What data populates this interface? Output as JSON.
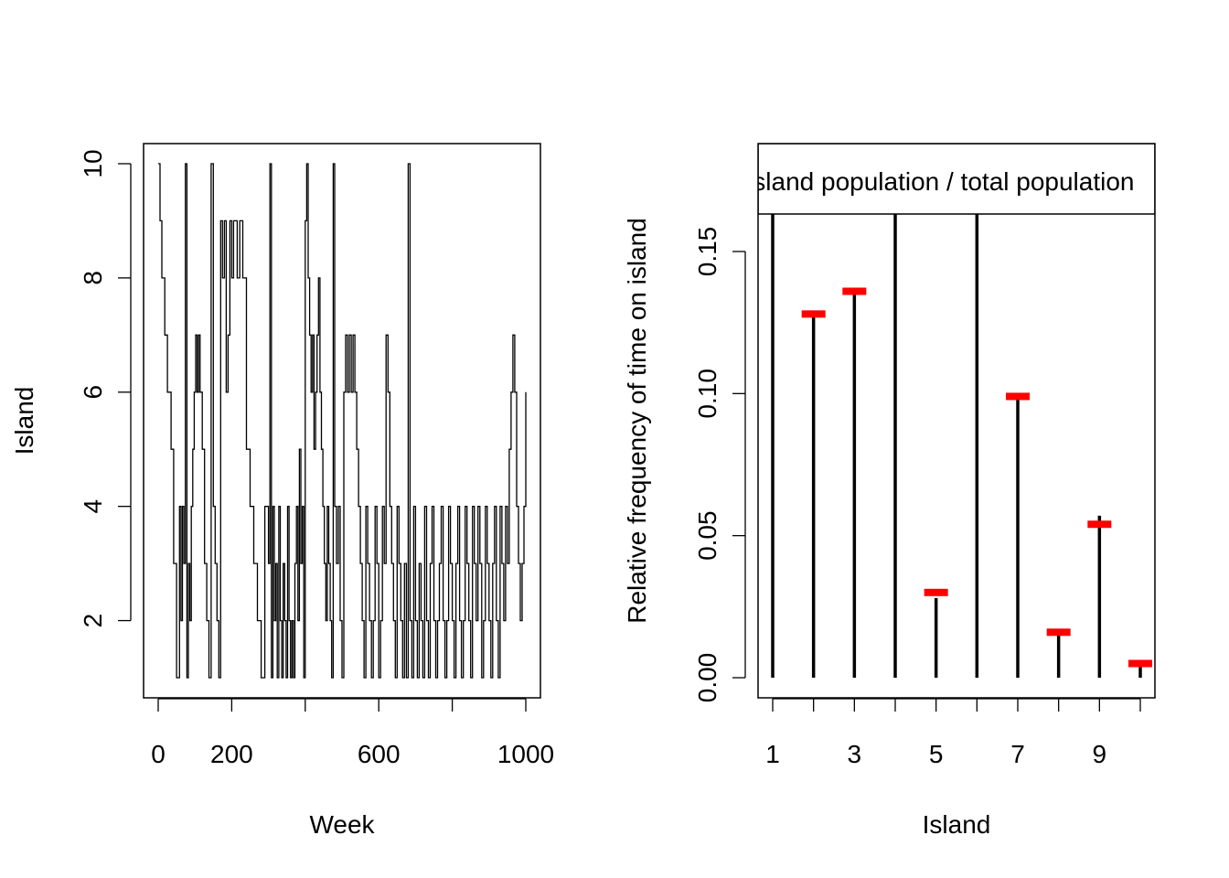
{
  "colors": {
    "line": "#000000",
    "marker": "#ff0000",
    "background": "#ffffff"
  },
  "chart_data": [
    {
      "type": "line",
      "plot_style": "step",
      "xlabel": "Week",
      "ylabel": "Island",
      "xlim": [
        0,
        1000
      ],
      "ylim": [
        1,
        10
      ],
      "x_ticks": [
        0,
        200,
        400,
        600,
        800,
        1000
      ],
      "x_tick_labels": [
        "0",
        "200",
        "",
        "600",
        "",
        "1000"
      ],
      "y_ticks": [
        2,
        4,
        6,
        8,
        10
      ],
      "y_tick_labels": [
        "2",
        "4",
        "6",
        "8",
        "10"
      ],
      "grid": false,
      "series": [
        {
          "x": [
            0,
            5,
            10,
            18,
            25,
            35,
            42,
            50,
            58,
            62,
            66,
            70,
            74,
            78,
            82,
            86,
            90,
            94,
            98,
            102,
            106,
            110,
            114,
            120,
            126,
            132,
            138,
            144,
            150,
            155,
            160,
            165,
            170,
            175,
            180,
            185,
            190,
            195,
            200,
            205,
            210,
            215,
            222,
            230,
            240,
            250,
            260,
            270,
            280,
            290,
            300,
            304,
            308,
            312,
            316,
            320,
            324,
            328,
            332,
            336,
            340,
            344,
            348,
            352,
            356,
            360,
            364,
            368,
            372,
            376,
            380,
            384,
            388,
            392,
            396,
            400,
            404,
            408,
            412,
            416,
            420,
            424,
            428,
            432,
            436,
            440,
            444,
            448,
            452,
            456,
            460,
            464,
            468,
            472,
            476,
            480,
            485,
            490,
            495,
            500,
            505,
            510,
            515,
            520,
            525,
            530,
            535,
            540,
            545,
            550,
            555,
            560,
            565,
            570,
            575,
            580,
            585,
            590,
            595,
            600,
            605,
            610,
            615,
            620,
            625,
            630,
            635,
            640,
            645,
            650,
            655,
            660,
            665,
            670,
            675,
            680,
            685,
            690,
            695,
            700,
            705,
            710,
            715,
            720,
            725,
            730,
            735,
            740,
            745,
            750,
            755,
            760,
            765,
            770,
            775,
            780,
            785,
            790,
            795,
            800,
            805,
            810,
            815,
            820,
            825,
            830,
            835,
            840,
            845,
            850,
            855,
            860,
            865,
            870,
            875,
            880,
            885,
            890,
            895,
            900,
            905,
            910,
            915,
            920,
            925,
            930,
            935,
            940,
            945,
            950,
            955,
            960,
            965,
            970,
            975,
            980,
            985,
            990,
            995,
            1000
          ],
          "y": [
            10,
            9,
            8,
            7,
            6,
            5,
            3,
            1,
            4,
            2,
            4,
            3,
            10,
            1,
            3,
            2,
            4,
            5,
            6,
            7,
            6,
            7,
            6,
            5,
            3,
            2,
            1,
            10,
            4,
            3,
            2,
            1,
            9,
            8,
            9,
            6,
            7,
            9,
            8,
            9,
            9,
            8,
            9,
            8,
            5,
            4,
            3,
            2,
            1,
            4,
            3,
            10,
            1,
            4,
            2,
            3,
            1,
            4,
            2,
            1,
            3,
            2,
            1,
            4,
            2,
            1,
            2,
            1,
            3,
            4,
            2,
            5,
            3,
            4,
            1,
            9,
            10,
            8,
            7,
            6,
            7,
            5,
            6,
            7,
            8,
            6,
            5,
            4,
            3,
            2,
            4,
            3,
            2,
            1,
            10,
            4,
            3,
            4,
            2,
            1,
            6,
            7,
            6,
            7,
            6,
            7,
            6,
            5,
            4,
            3,
            2,
            1,
            4,
            3,
            2,
            1,
            2,
            4,
            3,
            1,
            2,
            4,
            3,
            7,
            6,
            4,
            3,
            2,
            1,
            4,
            3,
            2,
            1,
            3,
            1,
            10,
            2,
            1,
            4,
            2,
            1,
            3,
            2,
            1,
            4,
            2,
            1,
            3,
            4,
            2,
            1,
            2,
            3,
            4,
            2,
            1,
            2,
            4,
            3,
            2,
            1,
            3,
            4,
            2,
            1,
            2,
            4,
            3,
            2,
            1,
            4,
            3,
            2,
            4,
            3,
            1,
            2,
            4,
            3,
            2,
            1,
            3,
            4,
            2,
            1,
            4,
            3,
            2,
            4,
            3,
            5,
            6,
            7,
            6,
            4,
            3,
            2,
            3,
            4,
            6
          ]
        }
      ]
    },
    {
      "type": "bar",
      "plot_style": "histogram-spikes",
      "title": "Island population / total population",
      "xlabel": "Island",
      "ylabel": "Relative frequency of time on island",
      "xlim": [
        0.7,
        10.3
      ],
      "ylim": [
        0,
        0.18
      ],
      "categories": [
        1,
        2,
        3,
        4,
        5,
        6,
        7,
        8,
        9,
        10
      ],
      "x_tick_labels": [
        "1",
        "",
        "3",
        "",
        "5",
        "",
        "7",
        "",
        "9",
        ""
      ],
      "y_ticks": [
        0.0,
        0.05,
        0.1,
        0.15
      ],
      "y_tick_labels": [
        "0.00",
        "0.05",
        "0.10",
        "0.15"
      ],
      "grid": false,
      "series": [
        {
          "values": [
            0.182,
            0.127,
            0.137,
            0.182,
            0.028,
            0.182,
            0.099,
            0.016,
            0.057,
            0.004
          ]
        },
        {
          "values": [
            0.182,
            0.128,
            0.136,
            0.182,
            0.03,
            0.182,
            0.099,
            0.016,
            0.054,
            0.005
          ]
        }
      ]
    }
  ]
}
